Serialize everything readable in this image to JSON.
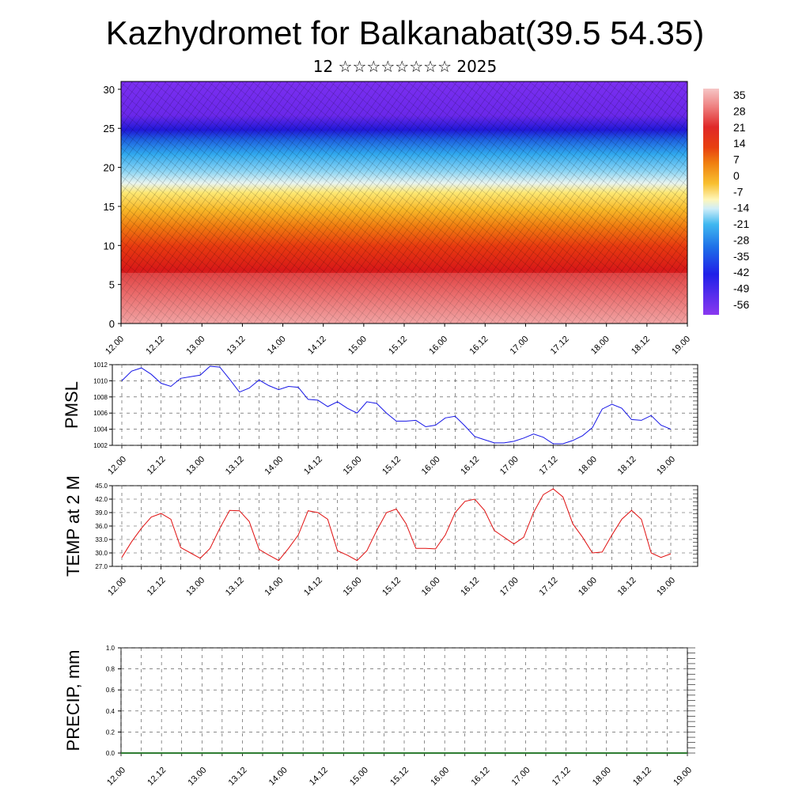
{
  "page": {
    "title": "Kazhydromet for Balkanabat(39.5 54.35)",
    "subtitle": "12 ☆☆☆☆☆☆☆☆ 2025"
  },
  "colors": {
    "pmsl_line": "#1515e6",
    "temp_line": "#e01010",
    "precip_line": "#2e7d32",
    "colorbar": [
      "#f4b8b8",
      "#f08080",
      "#e63030",
      "#d42020",
      "#e84010",
      "#f07a10",
      "#f7b020",
      "#fde050",
      "#fff9c8",
      "#c8ecfa",
      "#40b8f0",
      "#1e6fe8",
      "#2020e8",
      "#5d20e8",
      "#8a38f0"
    ]
  },
  "chart_data": [
    {
      "type": "heatmap",
      "name": "cross-section",
      "x_tick_labels": [
        "12.00",
        "12.12",
        "13.00",
        "13.12",
        "14.00",
        "14.12",
        "15.00",
        "15.12",
        "16.00",
        "16.12",
        "17.00",
        "17.12",
        "18.00",
        "18.12",
        "19.00"
      ],
      "y_ticks": [
        0,
        5,
        10,
        15,
        20,
        25,
        30
      ],
      "ylim": [
        0,
        31
      ],
      "colorbar_labels": [
        "35",
        "28",
        "21",
        "14",
        "7",
        "0",
        "-7",
        "-14",
        "-21",
        "-28",
        "-35",
        "-42",
        "-49",
        "-56"
      ],
      "note_levels": {
        "warm_top": 11,
        "transition": 17,
        "cold_start": 22,
        "tropopause": 25
      }
    },
    {
      "type": "line",
      "name": "pmsl",
      "ylabel": "PMSL",
      "ylim": [
        1002,
        1012
      ],
      "y_ticks": [
        "1002",
        "1004",
        "1006",
        "1008",
        "1010",
        "1012"
      ],
      "x_tick_labels": [
        "12.00",
        "12.12",
        "13.00",
        "13.12",
        "14.00",
        "14.12",
        "15.00",
        "15.12",
        "16.00",
        "16.12",
        "17.00",
        "17.12",
        "18.00",
        "18.12",
        "19.00"
      ],
      "values": [
        1010.0,
        1011.2,
        1011.6,
        1010.8,
        1009.7,
        1009.3,
        1010.3,
        1010.5,
        1010.7,
        1011.8,
        1011.7,
        1010.2,
        1008.6,
        1009.1,
        1010.1,
        1009.4,
        1008.9,
        1009.3,
        1009.2,
        1007.7,
        1007.6,
        1006.8,
        1007.4,
        1006.6,
        1006.0,
        1007.4,
        1007.2,
        1006.0,
        1005.0,
        1005.0,
        1005.1,
        1004.3,
        1004.5,
        1005.4,
        1005.6,
        1004.4,
        1003.1,
        1002.7,
        1002.3,
        1002.3,
        1002.5,
        1002.9,
        1003.4,
        1003.0,
        1002.2,
        1002.2,
        1002.6,
        1003.2,
        1004.2,
        1006.5,
        1007.1,
        1006.6,
        1005.2,
        1005.1,
        1005.7,
        1004.5,
        1004.0
      ]
    },
    {
      "type": "line",
      "name": "temp",
      "ylabel": "TEMP at 2 M",
      "ylim": [
        27.0,
        45.0
      ],
      "y_ticks": [
        "27.0",
        "30.0",
        "33.0",
        "36.0",
        "39.0",
        "42.0",
        "45.0"
      ],
      "x_tick_labels": [
        "12.00",
        "12.12",
        "13.00",
        "13.12",
        "14.00",
        "14.12",
        "15.00",
        "15.12",
        "16.00",
        "16.12",
        "17.00",
        "17.12",
        "18.00",
        "18.12",
        "19.00"
      ],
      "values": [
        29.0,
        32.5,
        35.5,
        38.0,
        38.8,
        37.5,
        31.2,
        30.0,
        28.8,
        31.0,
        35.5,
        39.5,
        39.4,
        37.0,
        30.8,
        29.5,
        28.3,
        31.0,
        34.0,
        39.4,
        39.0,
        37.5,
        30.5,
        29.5,
        28.3,
        30.5,
        35.0,
        39.0,
        39.8,
        36.5,
        31.0,
        31.0,
        30.9,
        34.0,
        39.0,
        41.5,
        42.0,
        39.5,
        35.0,
        33.5,
        32.0,
        33.5,
        39.0,
        43.0,
        44.3,
        42.5,
        36.5,
        33.5,
        30.0,
        30.2,
        34.0,
        37.5,
        39.5,
        37.5,
        30.0,
        29.0,
        29.8
      ]
    },
    {
      "type": "line",
      "name": "precip",
      "ylabel": "PRECIP, mm",
      "ylim": [
        0.0,
        1.0
      ],
      "y_ticks": [
        "0.0",
        "0.2",
        "0.4",
        "0.6",
        "0.8",
        "1.0"
      ],
      "x_tick_labels": [
        "12.00",
        "12.12",
        "13.00",
        "13.12",
        "14.00",
        "14.12",
        "15.00",
        "15.12",
        "16.00",
        "16.12",
        "17.00",
        "17.12",
        "18.00",
        "18.12",
        "19.00"
      ],
      "values": [
        0,
        0,
        0,
        0,
        0,
        0,
        0,
        0,
        0,
        0,
        0,
        0,
        0,
        0,
        0,
        0,
        0,
        0,
        0,
        0,
        0,
        0,
        0,
        0,
        0,
        0,
        0,
        0,
        0,
        0,
        0,
        0,
        0,
        0,
        0,
        0,
        0,
        0,
        0,
        0,
        0,
        0,
        0,
        0,
        0,
        0,
        0,
        0,
        0,
        0,
        0,
        0,
        0,
        0,
        0,
        0,
        0
      ]
    }
  ]
}
